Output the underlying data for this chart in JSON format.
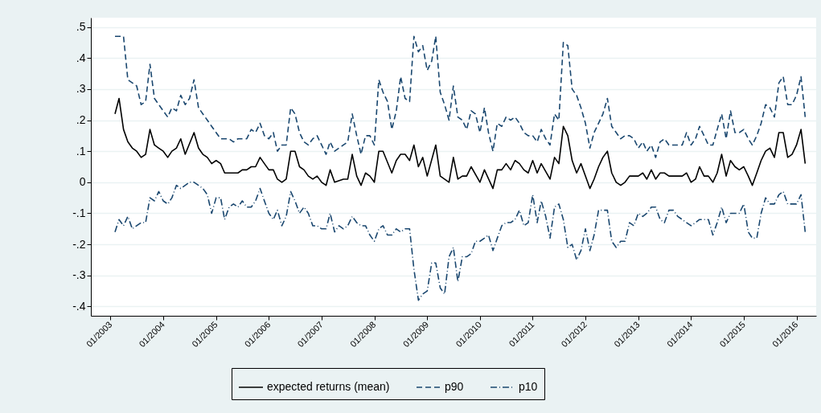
{
  "chart_data": {
    "type": "line",
    "xlim": [
      "2002-08-18",
      "2016-05-16"
    ],
    "xticks": [
      {
        "value": "2003-01",
        "label": "01/2003"
      },
      {
        "value": "2004-01",
        "label": "01/2004"
      },
      {
        "value": "2005-01",
        "label": "01/2005"
      },
      {
        "value": "2006-01",
        "label": "01/2006"
      },
      {
        "value": "2007-01",
        "label": "01/2007"
      },
      {
        "value": "2008-01",
        "label": "01/2008"
      },
      {
        "value": "2009-01",
        "label": "01/2009"
      },
      {
        "value": "2010-01",
        "label": "01/2010"
      },
      {
        "value": "2011-01",
        "label": "01/2011"
      },
      {
        "value": "2012-01",
        "label": "01/2012"
      },
      {
        "value": "2013-01",
        "label": "01/2013"
      },
      {
        "value": "2014-01",
        "label": "01/2014"
      },
      {
        "value": "2015-01",
        "label": "01/2015"
      },
      {
        "value": "2016-01",
        "label": "01/2016"
      }
    ],
    "ylim": [
      -0.43,
      0.53
    ],
    "yticks": [
      {
        "value": 0.5,
        "label": ".5"
      },
      {
        "value": 0.4,
        "label": ".4"
      },
      {
        "value": 0.3,
        "label": ".3"
      },
      {
        "value": 0.2,
        "label": ".2"
      },
      {
        "value": 0.1,
        "label": ".1"
      },
      {
        "value": 0,
        "label": "0"
      },
      {
        "value": -0.1,
        "label": "-.1"
      },
      {
        "value": -0.2,
        "label": "-.2"
      },
      {
        "value": -0.3,
        "label": "-.3"
      },
      {
        "value": -0.4,
        "label": "-.4"
      }
    ],
    "grid": "y",
    "legend": "bottom",
    "series": [
      {
        "name": "expected returns (mean)",
        "color": "#000000",
        "line_style": "solid",
        "x": [
          "2003-02",
          "2003-03",
          "2003-04",
          "2003-05",
          "2003-06",
          "2003-07",
          "2003-08",
          "2003-09",
          "2003-10",
          "2003-11",
          "2003-12",
          "2004-01",
          "2004-02",
          "2004-03",
          "2004-04",
          "2004-05",
          "2004-06",
          "2004-08",
          "2004-09",
          "2004-10",
          "2004-11",
          "2004-12",
          "2005-01",
          "2005-02",
          "2005-03",
          "2005-06",
          "2005-07",
          "2005-08",
          "2005-09",
          "2005-10",
          "2005-11",
          "2005-12",
          "2006-01",
          "2006-02",
          "2006-03",
          "2006-04",
          "2006-05",
          "2006-06",
          "2006-07",
          "2006-08",
          "2006-09",
          "2006-10",
          "2006-11",
          "2006-12",
          "2007-01",
          "2007-02",
          "2007-03",
          "2007-04",
          "2007-06",
          "2007-07",
          "2007-08",
          "2007-09",
          "2007-10",
          "2007-11",
          "2007-12",
          "2008-01",
          "2008-02",
          "2008-03",
          "2008-05",
          "2008-06",
          "2008-07",
          "2008-08",
          "2008-09",
          "2008-10",
          "2008-11",
          "2008-12",
          "2009-01",
          "2009-03",
          "2009-04",
          "2009-06",
          "2009-07",
          "2009-08",
          "2009-09",
          "2009-10",
          "2009-11",
          "2010-01",
          "2010-02",
          "2010-04",
          "2010-05",
          "2010-06",
          "2010-07",
          "2010-08",
          "2010-09",
          "2010-10",
          "2010-11",
          "2010-12",
          "2011-01",
          "2011-02",
          "2011-03",
          "2011-05",
          "2011-06",
          "2011-07",
          "2011-08",
          "2011-09",
          "2011-10",
          "2011-11",
          "2011-12",
          "2012-01",
          "2012-02",
          "2012-03",
          "2012-04",
          "2012-05",
          "2012-06",
          "2012-07",
          "2012-08",
          "2012-09",
          "2012-10",
          "2012-11",
          "2012-12",
          "2013-01",
          "2013-02",
          "2013-03",
          "2013-04",
          "2013-05",
          "2013-06",
          "2013-07",
          "2013-08",
          "2013-10",
          "2013-11",
          "2013-12",
          "2014-01",
          "2014-02",
          "2014-03",
          "2014-04",
          "2014-05",
          "2014-06",
          "2014-07",
          "2014-08",
          "2014-09",
          "2014-10",
          "2014-11",
          "2014-12",
          "2015-01",
          "2015-02",
          "2015-03",
          "2015-04",
          "2015-05",
          "2015-06",
          "2015-07",
          "2015-08",
          "2015-09",
          "2015-10",
          "2015-11",
          "2015-12",
          "2016-01",
          "2016-02",
          "2016-03"
        ],
        "values": [
          0.22,
          0.27,
          0.17,
          0.13,
          0.11,
          0.1,
          0.08,
          0.09,
          0.17,
          0.12,
          0.11,
          0.1,
          0.08,
          0.1,
          0.11,
          0.14,
          0.09,
          0.16,
          0.11,
          0.09,
          0.08,
          0.06,
          0.07,
          0.06,
          0.03,
          0.03,
          0.04,
          0.04,
          0.05,
          0.05,
          0.08,
          0.06,
          0.04,
          0.04,
          0.01,
          0.0,
          0.01,
          0.1,
          0.1,
          0.05,
          0.04,
          0.02,
          0.01,
          0.02,
          0.0,
          -0.01,
          0.04,
          0.0,
          0.01,
          0.01,
          0.09,
          0.02,
          -0.01,
          0.03,
          0.02,
          0.0,
          0.1,
          0.1,
          0.03,
          0.07,
          0.09,
          0.09,
          0.07,
          0.12,
          0.05,
          0.08,
          0.02,
          0.12,
          0.02,
          0.0,
          0.08,
          0.01,
          0.02,
          0.02,
          0.05,
          0.0,
          0.04,
          -0.02,
          0.04,
          0.04,
          0.06,
          0.04,
          0.07,
          0.06,
          0.04,
          0.03,
          0.07,
          0.03,
          0.06,
          0.01,
          0.08,
          0.06,
          0.18,
          0.15,
          0.07,
          0.03,
          0.06,
          0.02,
          -0.02,
          0.01,
          0.05,
          0.08,
          0.1,
          0.03,
          0.0,
          -0.01,
          0.0,
          0.02,
          0.02,
          0.02,
          0.03,
          0.01,
          0.04,
          0.01,
          0.03,
          0.03,
          0.02,
          0.02,
          0.02,
          0.03,
          0.0,
          0.01,
          0.05,
          0.02,
          0.02,
          0.0,
          0.03,
          0.09,
          0.02,
          0.07,
          0.05,
          0.04,
          0.05,
          0.02,
          -0.01,
          0.03,
          0.07,
          0.1,
          0.11,
          0.08,
          0.16,
          0.16,
          0.08,
          0.09,
          0.12,
          0.17,
          0.06
        ]
      },
      {
        "name": "p90",
        "color": "#1a476f",
        "line_style": "dashed",
        "x": [
          "2003-02",
          "2003-03",
          "2003-04",
          "2003-05",
          "2003-06",
          "2003-07",
          "2003-08",
          "2003-09",
          "2003-10",
          "2003-11",
          "2003-12",
          "2004-01",
          "2004-02",
          "2004-03",
          "2004-04",
          "2004-05",
          "2004-06",
          "2004-07",
          "2004-08",
          "2004-09",
          "2004-10",
          "2004-11",
          "2004-12",
          "2005-01",
          "2005-02",
          "2005-04",
          "2005-05",
          "2005-06",
          "2005-07",
          "2005-08",
          "2005-09",
          "2005-10",
          "2005-11",
          "2005-12",
          "2006-01",
          "2006-02",
          "2006-03",
          "2006-04",
          "2006-05",
          "2006-06",
          "2006-07",
          "2006-08",
          "2006-09",
          "2006-10",
          "2006-11",
          "2006-12",
          "2007-01",
          "2007-02",
          "2007-03",
          "2007-04",
          "2007-05",
          "2007-06",
          "2007-07",
          "2007-08",
          "2007-09",
          "2007-10",
          "2007-11",
          "2007-12",
          "2008-01",
          "2008-02",
          "2008-03",
          "2008-04",
          "2008-05",
          "2008-06",
          "2008-07",
          "2008-08",
          "2008-09",
          "2008-10",
          "2008-11",
          "2008-12",
          "2009-01",
          "2009-02",
          "2009-03",
          "2009-04",
          "2009-05",
          "2009-06",
          "2009-07",
          "2009-08",
          "2009-09",
          "2009-10",
          "2009-11",
          "2009-12",
          "2010-01",
          "2010-02",
          "2010-03",
          "2010-04",
          "2010-05",
          "2010-06",
          "2010-07",
          "2010-08",
          "2010-09",
          "2010-10",
          "2010-11",
          "2010-12",
          "2011-01",
          "2011-02",
          "2011-03",
          "2011-04",
          "2011-05",
          "2011-06",
          "2011-07",
          "2011-08",
          "2011-09",
          "2011-10",
          "2011-11",
          "2011-12",
          "2012-01",
          "2012-02",
          "2012-03",
          "2012-04",
          "2012-05",
          "2012-06",
          "2012-07",
          "2012-08",
          "2012-09",
          "2012-10",
          "2012-11",
          "2012-12",
          "2013-01",
          "2013-02",
          "2013-03",
          "2013-04",
          "2013-05",
          "2013-06",
          "2013-07",
          "2013-08",
          "2013-09",
          "2013-10",
          "2013-11",
          "2013-12",
          "2014-01",
          "2014-02",
          "2014-03",
          "2014-04",
          "2014-05",
          "2014-06",
          "2014-07",
          "2014-08",
          "2014-09",
          "2014-10",
          "2014-11",
          "2014-12",
          "2015-01",
          "2015-02",
          "2015-03",
          "2015-04",
          "2015-05",
          "2015-06",
          "2015-07",
          "2015-08",
          "2015-09",
          "2015-10",
          "2015-11",
          "2015-12",
          "2016-01",
          "2016-02",
          "2016-03"
        ],
        "values": [
          0.47,
          0.47,
          0.47,
          0.33,
          0.32,
          0.31,
          0.25,
          0.26,
          0.38,
          0.27,
          0.25,
          0.23,
          0.21,
          0.24,
          0.23,
          0.28,
          0.25,
          0.27,
          0.33,
          0.24,
          0.22,
          0.2,
          0.18,
          0.16,
          0.14,
          0.14,
          0.13,
          0.14,
          0.14,
          0.14,
          0.17,
          0.16,
          0.19,
          0.15,
          0.14,
          0.16,
          0.1,
          0.12,
          0.12,
          0.24,
          0.22,
          0.16,
          0.13,
          0.12,
          0.14,
          0.15,
          0.12,
          0.09,
          0.13,
          0.1,
          0.11,
          0.12,
          0.13,
          0.22,
          0.15,
          0.09,
          0.15,
          0.15,
          0.12,
          0.33,
          0.29,
          0.26,
          0.17,
          0.23,
          0.34,
          0.27,
          0.26,
          0.47,
          0.42,
          0.44,
          0.36,
          0.39,
          0.47,
          0.29,
          0.25,
          0.2,
          0.31,
          0.21,
          0.2,
          0.17,
          0.23,
          0.22,
          0.16,
          0.24,
          0.16,
          0.1,
          0.19,
          0.18,
          0.21,
          0.2,
          0.21,
          0.19,
          0.16,
          0.15,
          0.15,
          0.13,
          0.17,
          0.14,
          0.12,
          0.22,
          0.2,
          0.45,
          0.44,
          0.3,
          0.28,
          0.24,
          0.19,
          0.11,
          0.16,
          0.19,
          0.22,
          0.27,
          0.18,
          0.16,
          0.14,
          0.15,
          0.15,
          0.14,
          0.11,
          0.13,
          0.1,
          0.12,
          0.08,
          0.13,
          0.14,
          0.12,
          0.12,
          0.12,
          0.12,
          0.16,
          0.12,
          0.14,
          0.18,
          0.15,
          0.12,
          0.12,
          0.17,
          0.22,
          0.14,
          0.23,
          0.16,
          0.16,
          0.17,
          0.14,
          0.12,
          0.15,
          0.19,
          0.25,
          0.24,
          0.21,
          0.32,
          0.34,
          0.25,
          0.25,
          0.28,
          0.34,
          0.21
        ]
      },
      {
        "name": "p10",
        "color": "#1a476f",
        "line_style": "dashdot",
        "x": [
          "2003-02",
          "2003-03",
          "2003-04",
          "2003-05",
          "2003-06",
          "2003-07",
          "2003-08",
          "2003-09",
          "2003-10",
          "2003-11",
          "2003-12",
          "2004-01",
          "2004-02",
          "2004-03",
          "2004-04",
          "2004-05",
          "2004-06",
          "2004-07",
          "2004-08",
          "2004-09",
          "2004-10",
          "2004-11",
          "2004-12",
          "2005-01",
          "2005-02",
          "2005-03",
          "2005-04",
          "2005-05",
          "2005-06",
          "2005-07",
          "2005-08",
          "2005-09",
          "2005-10",
          "2005-11",
          "2005-12",
          "2006-01",
          "2006-02",
          "2006-03",
          "2006-04",
          "2006-05",
          "2006-06",
          "2006-07",
          "2006-08",
          "2006-09",
          "2006-10",
          "2006-11",
          "2006-12",
          "2007-01",
          "2007-02",
          "2007-03",
          "2007-04",
          "2007-05",
          "2007-06",
          "2007-07",
          "2007-08",
          "2007-09",
          "2007-10",
          "2007-11",
          "2007-12",
          "2008-01",
          "2008-02",
          "2008-03",
          "2008-04",
          "2008-05",
          "2008-06",
          "2008-07",
          "2008-08",
          "2008-09",
          "2008-10",
          "2008-11",
          "2008-12",
          "2009-01",
          "2009-02",
          "2009-03",
          "2009-04",
          "2009-05",
          "2009-06",
          "2009-07",
          "2009-08",
          "2009-09",
          "2009-10",
          "2009-11",
          "2009-12",
          "2010-01",
          "2010-02",
          "2010-03",
          "2010-04",
          "2010-05",
          "2010-06",
          "2010-07",
          "2010-08",
          "2010-09",
          "2010-10",
          "2010-11",
          "2010-12",
          "2011-01",
          "2011-02",
          "2011-03",
          "2011-04",
          "2011-05",
          "2011-06",
          "2011-07",
          "2011-08",
          "2011-09",
          "2011-10",
          "2011-11",
          "2011-12",
          "2012-01",
          "2012-02",
          "2012-03",
          "2012-04",
          "2012-05",
          "2012-06",
          "2012-07",
          "2012-08",
          "2012-09",
          "2012-10",
          "2012-11",
          "2012-12",
          "2013-01",
          "2013-02",
          "2013-03",
          "2013-04",
          "2013-05",
          "2013-06",
          "2013-07",
          "2013-08",
          "2013-09",
          "2013-10",
          "2013-11",
          "2013-12",
          "2014-01",
          "2014-02",
          "2014-03",
          "2014-04",
          "2014-05",
          "2014-06",
          "2014-07",
          "2014-08",
          "2014-09",
          "2014-10",
          "2014-11",
          "2014-12",
          "2015-01",
          "2015-02",
          "2015-03",
          "2015-04",
          "2015-05",
          "2015-06",
          "2015-07",
          "2015-08",
          "2015-09",
          "2015-10",
          "2015-11",
          "2015-12",
          "2016-01",
          "2016-02",
          "2016-03"
        ],
        "values": [
          -0.16,
          -0.12,
          -0.14,
          -0.11,
          -0.15,
          -0.14,
          -0.13,
          -0.13,
          -0.05,
          -0.06,
          -0.03,
          -0.06,
          -0.07,
          -0.05,
          -0.01,
          -0.02,
          -0.01,
          0.0,
          0.0,
          -0.01,
          -0.02,
          -0.04,
          -0.1,
          -0.05,
          -0.05,
          -0.12,
          -0.08,
          -0.07,
          -0.08,
          -0.06,
          -0.08,
          -0.08,
          -0.06,
          -0.02,
          -0.06,
          -0.1,
          -0.12,
          -0.09,
          -0.14,
          -0.11,
          -0.03,
          -0.06,
          -0.1,
          -0.08,
          -0.1,
          -0.14,
          -0.14,
          -0.15,
          -0.15,
          -0.1,
          -0.16,
          -0.14,
          -0.15,
          -0.14,
          -0.11,
          -0.13,
          -0.14,
          -0.14,
          -0.17,
          -0.19,
          -0.15,
          -0.14,
          -0.17,
          -0.17,
          -0.15,
          -0.16,
          -0.15,
          -0.15,
          -0.28,
          -0.38,
          -0.36,
          -0.35,
          -0.26,
          -0.26,
          -0.34,
          -0.36,
          -0.24,
          -0.21,
          -0.32,
          -0.24,
          -0.24,
          -0.23,
          -0.19,
          -0.19,
          -0.18,
          -0.17,
          -0.22,
          -0.18,
          -0.14,
          -0.13,
          -0.13,
          -0.12,
          -0.09,
          -0.14,
          -0.13,
          -0.04,
          -0.13,
          -0.06,
          -0.11,
          -0.18,
          -0.08,
          -0.07,
          -0.12,
          -0.21,
          -0.2,
          -0.25,
          -0.22,
          -0.15,
          -0.22,
          -0.17,
          -0.09,
          -0.09,
          -0.09,
          -0.19,
          -0.21,
          -0.19,
          -0.19,
          -0.13,
          -0.14,
          -0.1,
          -0.11,
          -0.1,
          -0.08,
          -0.08,
          -0.12,
          -0.13,
          -0.09,
          -0.09,
          -0.11,
          -0.12,
          -0.13,
          -0.14,
          -0.13,
          -0.12,
          -0.12,
          -0.12,
          -0.17,
          -0.13,
          -0.08,
          -0.13,
          -0.1,
          -0.1,
          -0.1,
          -0.07,
          -0.16,
          -0.18,
          -0.18,
          -0.1,
          -0.05,
          -0.07,
          -0.07,
          -0.04,
          -0.03,
          -0.07,
          -0.07,
          -0.07,
          -0.04,
          -0.16
        ]
      }
    ]
  }
}
